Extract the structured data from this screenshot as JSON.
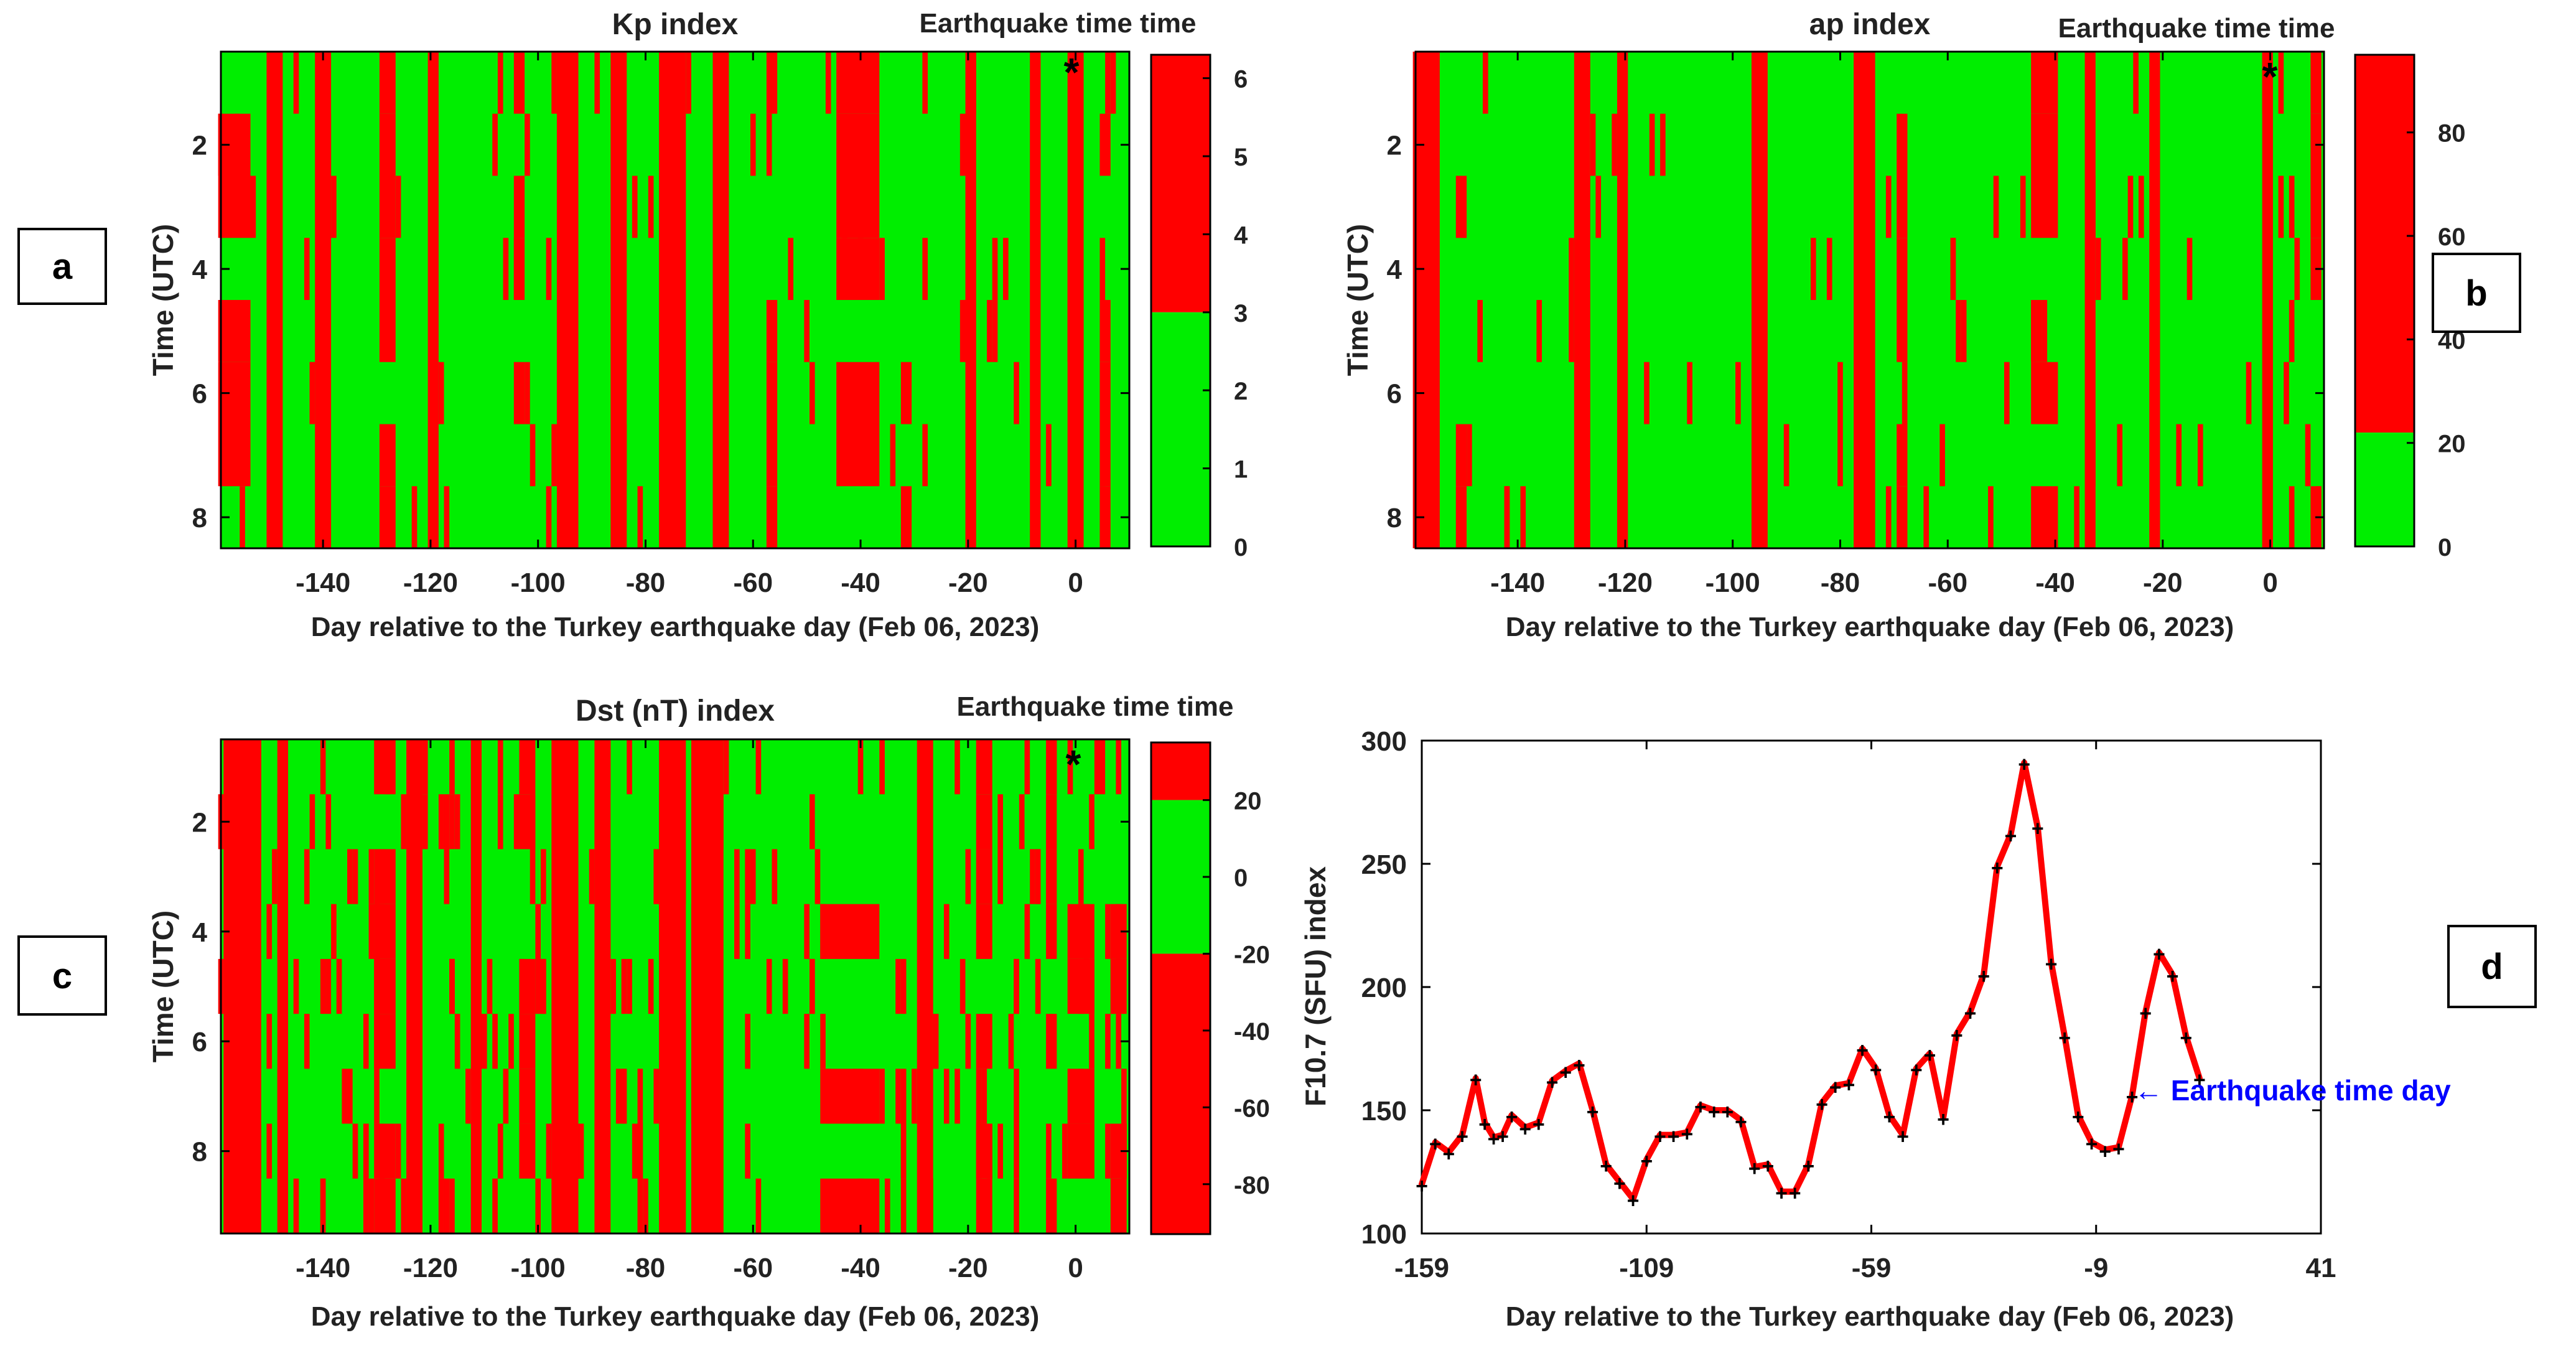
{
  "panel_labels": {
    "a": "a",
    "b": "b",
    "c": "c",
    "d": "d"
  },
  "colors": {
    "quiet": "#00ee00",
    "disturbed": "#ff0000",
    "line": "#ff0000",
    "marker": "#000000",
    "annotation": "#0000ff"
  },
  "chart_data": [
    {
      "type": "heatmap",
      "id": "kp",
      "title": "Kp index",
      "subtitle": "Earthquake time time",
      "marker_symbol": "*",
      "xlabel": "Day relative to the Turkey earthquake day (Feb 06, 2023)",
      "ylabel": "Time (UTC)",
      "xlim": [
        -159,
        10
      ],
      "ylim": [
        0.5,
        8.5
      ],
      "xticks": [
        -140,
        -120,
        -100,
        -80,
        -60,
        -40,
        -20,
        0
      ],
      "yticks": [
        2,
        4,
        6,
        8
      ],
      "threshold": 3,
      "colorbar": {
        "min": 0,
        "max": 6.3,
        "split": 3,
        "ticks": [
          0,
          1,
          2,
          3,
          4,
          5,
          6
        ]
      },
      "earthquake_marker": {
        "day": -1,
        "time": 0.8
      },
      "disturbed_day_ranges": [
        [
          -159,
          -154
        ],
        [
          -150,
          -148
        ],
        [
          -141,
          -139
        ],
        [
          -129,
          -127
        ],
        [
          -120,
          -119
        ],
        [
          -104,
          -103
        ],
        [
          -96,
          -93
        ],
        [
          -86,
          -84
        ],
        [
          -77,
          -73
        ],
        [
          -67,
          -65
        ],
        [
          -57,
          -56
        ],
        [
          -44,
          -37
        ],
        [
          -32,
          -31
        ],
        [
          -20,
          -19
        ],
        [
          -8,
          -7
        ],
        [
          -1,
          1
        ],
        [
          5,
          6
        ]
      ],
      "disturbed_times": [
        1,
        2,
        3,
        6,
        7
      ]
    },
    {
      "type": "heatmap",
      "id": "ap",
      "title": "ap index",
      "subtitle": "Earthquake time time",
      "marker_symbol": "*",
      "xlabel": "Day relative to the Turkey earthquake day (Feb 06, 2023)",
      "ylabel": "Time (UTC)",
      "xlim": [
        -159,
        10
      ],
      "ylim": [
        0.5,
        8.5
      ],
      "xticks": [
        -140,
        -120,
        -100,
        -80,
        -60,
        -40,
        -20,
        0
      ],
      "yticks": [
        2,
        4,
        6,
        8
      ],
      "threshold": 22,
      "colorbar": {
        "min": 0,
        "max": 95,
        "split": 22,
        "ticks": [
          0,
          20,
          40,
          60,
          80
        ]
      },
      "earthquake_marker": {
        "day": -1,
        "time": 0.8
      },
      "disturbed_day_ranges": [
        [
          -159,
          -155
        ],
        [
          -151,
          -150
        ],
        [
          -129,
          -127
        ],
        [
          -121,
          -120
        ],
        [
          -96,
          -94
        ],
        [
          -77,
          -74
        ],
        [
          -69,
          -68
        ],
        [
          -44,
          -40
        ],
        [
          -34,
          -33
        ],
        [
          -22,
          -21
        ],
        [
          -1,
          0
        ],
        [
          8,
          9
        ]
      ],
      "disturbed_times": [
        1,
        3,
        6,
        8
      ]
    },
    {
      "type": "heatmap",
      "id": "dst",
      "title": "Dst (nT) index",
      "subtitle": "Earthquake time time",
      "marker_symbol": "*",
      "xlabel": "Day relative to the Turkey earthquake day (Feb 06, 2023)",
      "ylabel": "Time (UTC)",
      "xlim": [
        -159,
        10
      ],
      "ylim": [
        0.5,
        9.5
      ],
      "xticks": [
        -140,
        -120,
        -100,
        -80,
        -60,
        -40,
        -20,
        0
      ],
      "yticks": [
        2,
        4,
        6,
        8
      ],
      "threshold_low": -20,
      "threshold_high": 20,
      "colorbar": {
        "min": -93,
        "max": 35,
        "split_low": -20,
        "split_high": 20,
        "ticks": [
          -80,
          -60,
          -40,
          -20,
          0,
          20
        ]
      },
      "earthquake_marker": {
        "day": -1,
        "time": 0.8
      },
      "disturbed_day_ranges": [
        [
          -158,
          -152
        ],
        [
          -148,
          -147
        ],
        [
          -130,
          -127
        ],
        [
          -124,
          -122
        ],
        [
          -112,
          -111
        ],
        [
          -103,
          -101
        ],
        [
          -97,
          -93
        ],
        [
          -89,
          -87
        ],
        [
          -77,
          -73
        ],
        [
          -71,
          -66
        ],
        [
          -47,
          -37
        ],
        [
          -29,
          -27
        ],
        [
          -18,
          -16
        ],
        [
          -5,
          -4
        ],
        [
          -1,
          3
        ],
        [
          7,
          9
        ]
      ],
      "disturbed_times": [
        1,
        2,
        3,
        4,
        5,
        6,
        7,
        8,
        9
      ]
    },
    {
      "type": "line",
      "id": "f107",
      "title": "",
      "xlabel": "Day relative to the Turkey earthquake day (Feb 06, 2023)",
      "ylabel": "F10.7 (SFU) index",
      "xlim": [
        -159,
        41
      ],
      "ylim": [
        100,
        300
      ],
      "xticks": [
        -159,
        -109,
        -59,
        -9,
        41
      ],
      "yticks": [
        100,
        150,
        200,
        250,
        300
      ],
      "annotation": "← Earthquake time day",
      "annotation_day": 0,
      "series": [
        {
          "name": "F10.7",
          "x": [
            -159,
            -156,
            -153,
            -150,
            -147,
            -145,
            -143,
            -141,
            -139,
            -136,
            -133,
            -130,
            -127,
            -124,
            -121,
            -118,
            -115,
            -112,
            -109,
            -106,
            -103,
            -100,
            -97,
            -94,
            -91,
            -88,
            -85,
            -82,
            -79,
            -76,
            -73,
            -70,
            -67,
            -64,
            -61,
            -58,
            -55,
            -52,
            -49,
            -46,
            -43,
            -40,
            -37,
            -34,
            -31,
            -28,
            -25,
            -22,
            -19,
            -16,
            -13,
            -10,
            -7,
            -4,
            -1,
            2,
            5,
            8,
            11,
            14
          ],
          "y": [
            120,
            137,
            133,
            140,
            163,
            145,
            139,
            140,
            148,
            143,
            145,
            162,
            166,
            169,
            150,
            128,
            121,
            114,
            130,
            140,
            140,
            141,
            152,
            150,
            150,
            146,
            127,
            128,
            117,
            117,
            128,
            153,
            160,
            161,
            175,
            167,
            148,
            140,
            167,
            173,
            147,
            181,
            190,
            205,
            249,
            262,
            291,
            265,
            210,
            180,
            148,
            137,
            134,
            135,
            156,
            190,
            214,
            205,
            180,
            163
          ]
        }
      ]
    }
  ]
}
